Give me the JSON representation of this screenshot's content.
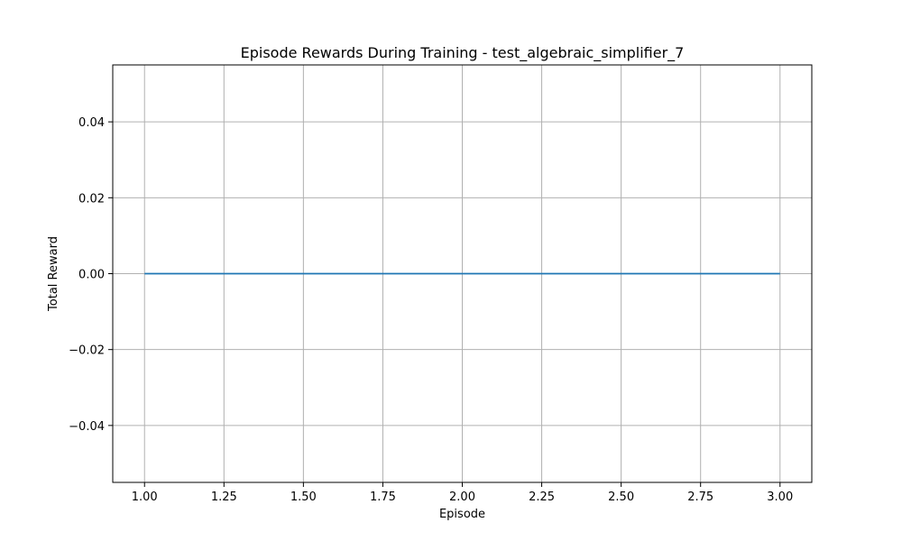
{
  "chart_data": {
    "type": "line",
    "title": "Episode Rewards During Training - test_algebraic_simplifier_7",
    "xlabel": "Episode",
    "ylabel": "Total Reward",
    "xlim": [
      0.9,
      3.1
    ],
    "ylim": [
      -0.055,
      0.055
    ],
    "xticks": [
      1.0,
      1.25,
      1.5,
      1.75,
      2.0,
      2.25,
      2.5,
      2.75,
      3.0
    ],
    "xtick_labels": [
      "1.00",
      "1.25",
      "1.50",
      "1.75",
      "2.00",
      "2.25",
      "2.50",
      "2.75",
      "3.00"
    ],
    "yticks": [
      -0.04,
      -0.02,
      0.0,
      0.02,
      0.04
    ],
    "ytick_labels": [
      "−0.04",
      "−0.02",
      "0.00",
      "0.02",
      "0.04"
    ],
    "grid": true,
    "series": [
      {
        "x": [
          1,
          2,
          3
        ],
        "y": [
          0,
          0,
          0
        ],
        "color": "#1f77b4"
      }
    ],
    "colors": {
      "grid": "#b0b0b0",
      "axes": "#000000",
      "background": "#ffffff"
    }
  }
}
